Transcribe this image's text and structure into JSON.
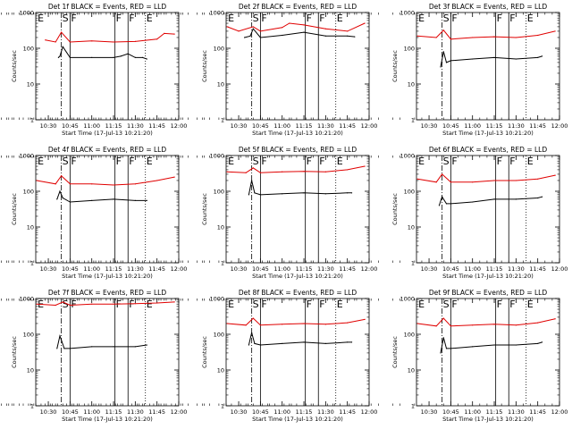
{
  "chart_data": [
    {
      "type": "line",
      "title": "Det 1f BLACK = Events, RED = LLD",
      "xlabel": "Start Time (17-Jul-13 10:21:20)",
      "ylabel": "Counts/sec",
      "x_ticks": [
        "10:30",
        "10:45",
        "11:00",
        "11:15",
        "11:30",
        "11:45",
        "12:00"
      ],
      "y_ticks": [
        "1",
        "10",
        "100",
        "1000"
      ],
      "y_scale": "log",
      "ylim": [
        1,
        1000
      ],
      "series": [
        {
          "color": "#000000",
          "x": [
            "10:37",
            "10:38",
            "10:40",
            "10:45",
            "11:00",
            "11:15",
            "11:20",
            "11:25",
            "11:30",
            "11:35",
            "11:38"
          ],
          "y": [
            55,
            60,
            110,
            55,
            55,
            55,
            60,
            70,
            55,
            55,
            50
          ]
        },
        {
          "color": "#e00000",
          "x": [
            "10:28",
            "10:35",
            "10:39",
            "10:45",
            "11:00",
            "11:15",
            "11:30",
            "11:45",
            "11:50",
            "11:57"
          ],
          "y": [
            170,
            150,
            280,
            150,
            160,
            150,
            155,
            180,
            260,
            250
          ]
        }
      ],
      "markers": [
        {
          "label": "E",
          "x": "10:22"
        },
        {
          "label": "S",
          "x": "10:39"
        },
        {
          "label": "F",
          "x": "10:45"
        },
        {
          "label": "F",
          "x": "11:16"
        },
        {
          "label": "F",
          "x": "11:25"
        },
        {
          "label": "E",
          "x": "11:37"
        }
      ]
    },
    {
      "type": "line",
      "title": "Det 2f BLACK = Events, RED = LLD",
      "xlabel": "Start Time (17-Jul-13 10:21:20)",
      "ylabel": "Counts/sec",
      "x_ticks": [
        "10:30",
        "10:45",
        "11:00",
        "11:15",
        "11:30",
        "11:45",
        "12:00"
      ],
      "y_ticks": [
        "1",
        "10",
        "100",
        "1000"
      ],
      "y_scale": "log",
      "ylim": [
        1,
        1000
      ],
      "series": [
        {
          "color": "#000000",
          "x": [
            "10:34",
            "10:38",
            "10:40",
            "10:45",
            "11:00",
            "11:15",
            "11:30",
            "11:45",
            "11:50"
          ],
          "y": [
            200,
            220,
            350,
            200,
            230,
            280,
            220,
            220,
            210
          ]
        },
        {
          "color": "#e00000",
          "x": [
            "10:22",
            "10:30",
            "10:40",
            "10:45",
            "11:00",
            "11:05",
            "11:15",
            "11:30",
            "11:45",
            "11:57"
          ],
          "y": [
            400,
            300,
            400,
            300,
            380,
            500,
            450,
            350,
            300,
            500
          ]
        }
      ],
      "markers": [
        {
          "label": "E",
          "x": "10:22"
        },
        {
          "label": "S",
          "x": "10:39"
        },
        {
          "label": "F",
          "x": "10:45"
        },
        {
          "label": "F",
          "x": "11:16"
        },
        {
          "label": "F",
          "x": "11:25"
        },
        {
          "label": "E",
          "x": "11:37"
        }
      ]
    },
    {
      "type": "line",
      "title": "Det 3f BLACK = Events, RED = LLD",
      "xlabel": "Start Time (17-Jul-13 10:21:20)",
      "ylabel": "Counts/sec",
      "x_ticks": [
        "10:30",
        "10:45",
        "11:00",
        "11:15",
        "11:30",
        "11:45",
        "12:00"
      ],
      "y_ticks": [
        "1",
        "10",
        "100",
        "1000"
      ],
      "y_scale": "log",
      "ylim": [
        1,
        1000
      ],
      "series": [
        {
          "color": "#000000",
          "x": [
            "10:38",
            "10:40",
            "10:42",
            "10:45",
            "11:00",
            "11:15",
            "11:30",
            "11:45",
            "11:48"
          ],
          "y": [
            30,
            80,
            40,
            45,
            50,
            55,
            50,
            55,
            60
          ]
        },
        {
          "color": "#e00000",
          "x": [
            "10:22",
            "10:35",
            "10:40",
            "10:45",
            "11:00",
            "11:15",
            "11:30",
            "11:45",
            "11:57"
          ],
          "y": [
            220,
            200,
            320,
            180,
            200,
            210,
            200,
            230,
            300
          ]
        }
      ],
      "markers": [
        {
          "label": "E",
          "x": "10:22"
        },
        {
          "label": "S",
          "x": "10:39"
        },
        {
          "label": "F",
          "x": "10:45"
        },
        {
          "label": "F",
          "x": "11:16"
        },
        {
          "label": "F",
          "x": "11:25"
        },
        {
          "label": "E",
          "x": "11:37"
        }
      ]
    },
    {
      "type": "line",
      "title": "Det 4f BLACK = Events, RED = LLD",
      "xlabel": "Start Time (17-Jul-13 10:21:20)",
      "ylabel": "Counts/sec",
      "x_ticks": [
        "10:30",
        "10:45",
        "11:00",
        "11:15",
        "11:30",
        "11:45",
        "12:00"
      ],
      "y_ticks": [
        "1",
        "10",
        "100",
        "1000"
      ],
      "y_scale": "log",
      "ylim": [
        1,
        1000
      ],
      "series": [
        {
          "color": "#000000",
          "x": [
            "10:36",
            "10:38",
            "10:40",
            "10:45",
            "11:00",
            "11:15",
            "11:30",
            "11:38"
          ],
          "y": [
            60,
            100,
            65,
            50,
            55,
            60,
            55,
            55
          ]
        },
        {
          "color": "#e00000",
          "x": [
            "10:22",
            "10:35",
            "10:39",
            "10:45",
            "11:00",
            "11:15",
            "11:30",
            "11:45",
            "11:57"
          ],
          "y": [
            200,
            160,
            270,
            160,
            160,
            150,
            160,
            200,
            250
          ]
        }
      ],
      "markers": [
        {
          "label": "E",
          "x": "10:22"
        },
        {
          "label": "S",
          "x": "10:39"
        },
        {
          "label": "F",
          "x": "10:45"
        },
        {
          "label": "F",
          "x": "11:16"
        },
        {
          "label": "F",
          "x": "11:25"
        },
        {
          "label": "E",
          "x": "11:37"
        }
      ]
    },
    {
      "type": "line",
      "title": "Det 5f BLACK = Events, RED = LLD",
      "xlabel": "Start Time (17-Jul-13 10:21:20)",
      "ylabel": "Counts/sec",
      "x_ticks": [
        "10:30",
        "10:45",
        "11:00",
        "11:15",
        "11:30",
        "11:45",
        "12:00"
      ],
      "y_ticks": [
        "1",
        "10",
        "100",
        "1000"
      ],
      "y_scale": "log",
      "ylim": [
        1,
        1000
      ],
      "series": [
        {
          "color": "#000000",
          "x": [
            "10:37",
            "10:39",
            "10:41",
            "10:45",
            "11:00",
            "11:15",
            "11:30",
            "11:45",
            "11:48"
          ],
          "y": [
            80,
            200,
            90,
            80,
            85,
            90,
            85,
            90,
            90
          ]
        },
        {
          "color": "#e00000",
          "x": [
            "10:22",
            "10:35",
            "10:40",
            "10:45",
            "11:00",
            "11:15",
            "11:30",
            "11:45",
            "11:57"
          ],
          "y": [
            350,
            330,
            450,
            330,
            350,
            360,
            350,
            400,
            500
          ]
        }
      ],
      "markers": [
        {
          "label": "E",
          "x": "10:22"
        },
        {
          "label": "S",
          "x": "10:39"
        },
        {
          "label": "F",
          "x": "10:45"
        },
        {
          "label": "F",
          "x": "11:16"
        },
        {
          "label": "F",
          "x": "11:25"
        },
        {
          "label": "E",
          "x": "11:37"
        }
      ]
    },
    {
      "type": "line",
      "title": "Det 6f BLACK = Events, RED = LLD",
      "xlabel": "Start Time (17-Jul-13 10:21:20)",
      "ylabel": "Counts/sec",
      "x_ticks": [
        "10:30",
        "10:45",
        "11:00",
        "11:15",
        "11:30",
        "11:45",
        "12:00"
      ],
      "y_ticks": [
        "1",
        "10",
        "100",
        "1000"
      ],
      "y_scale": "log",
      "ylim": [
        1,
        1000
      ],
      "series": [
        {
          "color": "#000000",
          "x": [
            "10:37",
            "10:39",
            "10:42",
            "10:45",
            "11:00",
            "11:15",
            "11:30",
            "11:45",
            "11:48"
          ],
          "y": [
            40,
            70,
            45,
            45,
            50,
            60,
            60,
            65,
            70
          ]
        },
        {
          "color": "#e00000",
          "x": [
            "10:22",
            "10:35",
            "10:39",
            "10:45",
            "11:00",
            "11:15",
            "11:30",
            "11:45",
            "11:57"
          ],
          "y": [
            220,
            180,
            300,
            180,
            180,
            200,
            200,
            220,
            280
          ]
        }
      ],
      "markers": [
        {
          "label": "E",
          "x": "10:22"
        },
        {
          "label": "S",
          "x": "10:39"
        },
        {
          "label": "F",
          "x": "10:45"
        },
        {
          "label": "F",
          "x": "11:16"
        },
        {
          "label": "F",
          "x": "11:25"
        },
        {
          "label": "E",
          "x": "11:37"
        }
      ]
    },
    {
      "type": "line",
      "title": "Det 7f BLACK = Events, RED = LLD",
      "xlabel": "Start Time (17-Jul-13 10:21:20)",
      "ylabel": "Counts/sec",
      "x_ticks": [
        "10:30",
        "10:45",
        "11:00",
        "11:15",
        "11:30",
        "11:45",
        "12:00"
      ],
      "y_ticks": [
        "1",
        "10",
        "100",
        "1000"
      ],
      "y_scale": "log",
      "ylim": [
        1,
        1000
      ],
      "series": [
        {
          "color": "#000000",
          "x": [
            "10:36",
            "10:38",
            "10:41",
            "10:45",
            "11:00",
            "11:15",
            "11:30",
            "11:38"
          ],
          "y": [
            40,
            90,
            40,
            40,
            45,
            45,
            45,
            50
          ]
        },
        {
          "color": "#e00000",
          "x": [
            "10:22",
            "10:35",
            "10:40",
            "10:45",
            "11:00",
            "11:15",
            "11:30",
            "11:45",
            "11:57"
          ],
          "y": [
            700,
            650,
            800,
            650,
            700,
            700,
            720,
            750,
            800
          ]
        }
      ],
      "markers": [
        {
          "label": "E",
          "x": "10:22"
        },
        {
          "label": "S",
          "x": "10:39"
        },
        {
          "label": "F",
          "x": "10:45"
        },
        {
          "label": "F",
          "x": "11:16"
        },
        {
          "label": "F",
          "x": "11:25"
        },
        {
          "label": "E",
          "x": "11:37"
        }
      ]
    },
    {
      "type": "line",
      "title": "Det 8f BLACK = Events, RED = LLD",
      "xlabel": "Start Time (17-Jul-13 10:21:20)",
      "ylabel": "Counts/sec",
      "x_ticks": [
        "10:30",
        "10:45",
        "11:00",
        "11:15",
        "11:30",
        "11:45",
        "12:00"
      ],
      "y_ticks": [
        "1",
        "10",
        "100",
        "1000"
      ],
      "y_scale": "log",
      "ylim": [
        1,
        1000
      ],
      "series": [
        {
          "color": "#000000",
          "x": [
            "10:37",
            "10:39",
            "10:41",
            "10:45",
            "11:00",
            "11:15",
            "11:30",
            "11:45",
            "11:48"
          ],
          "y": [
            50,
            110,
            55,
            50,
            55,
            60,
            55,
            60,
            60
          ]
        },
        {
          "color": "#e00000",
          "x": [
            "10:22",
            "10:35",
            "10:40",
            "10:45",
            "11:00",
            "11:15",
            "11:30",
            "11:45",
            "11:57"
          ],
          "y": [
            200,
            180,
            280,
            180,
            190,
            200,
            190,
            210,
            260
          ]
        }
      ],
      "markers": [
        {
          "label": "E",
          "x": "10:22"
        },
        {
          "label": "S",
          "x": "10:39"
        },
        {
          "label": "F",
          "x": "10:45"
        },
        {
          "label": "F",
          "x": "11:16"
        },
        {
          "label": "F",
          "x": "11:25"
        },
        {
          "label": "E",
          "x": "11:37"
        }
      ]
    },
    {
      "type": "line",
      "title": "Det 9f BLACK = Events, RED = LLD",
      "xlabel": "Start Time (17-Jul-13 10:21:20)",
      "ylabel": "Counts/sec",
      "x_ticks": [
        "10:30",
        "10:45",
        "11:00",
        "11:15",
        "11:30",
        "11:45",
        "12:00"
      ],
      "y_ticks": [
        "1",
        "10",
        "100",
        "1000"
      ],
      "y_scale": "log",
      "ylim": [
        1,
        1000
      ],
      "series": [
        {
          "color": "#000000",
          "x": [
            "10:38",
            "10:40",
            "10:42",
            "10:45",
            "11:00",
            "11:15",
            "11:30",
            "11:45",
            "11:48"
          ],
          "y": [
            30,
            80,
            40,
            40,
            45,
            50,
            50,
            55,
            60
          ]
        },
        {
          "color": "#e00000",
          "x": [
            "10:22",
            "10:35",
            "10:40",
            "10:45",
            "11:00",
            "11:15",
            "11:30",
            "11:45",
            "11:57"
          ],
          "y": [
            200,
            170,
            280,
            170,
            180,
            190,
            180,
            210,
            270
          ]
        }
      ],
      "markers": [
        {
          "label": "E",
          "x": "10:22"
        },
        {
          "label": "S",
          "x": "10:39"
        },
        {
          "label": "F",
          "x": "10:45"
        },
        {
          "label": "F",
          "x": "11:16"
        },
        {
          "label": "F",
          "x": "11:25"
        },
        {
          "label": "E",
          "x": "11:37"
        }
      ]
    }
  ]
}
